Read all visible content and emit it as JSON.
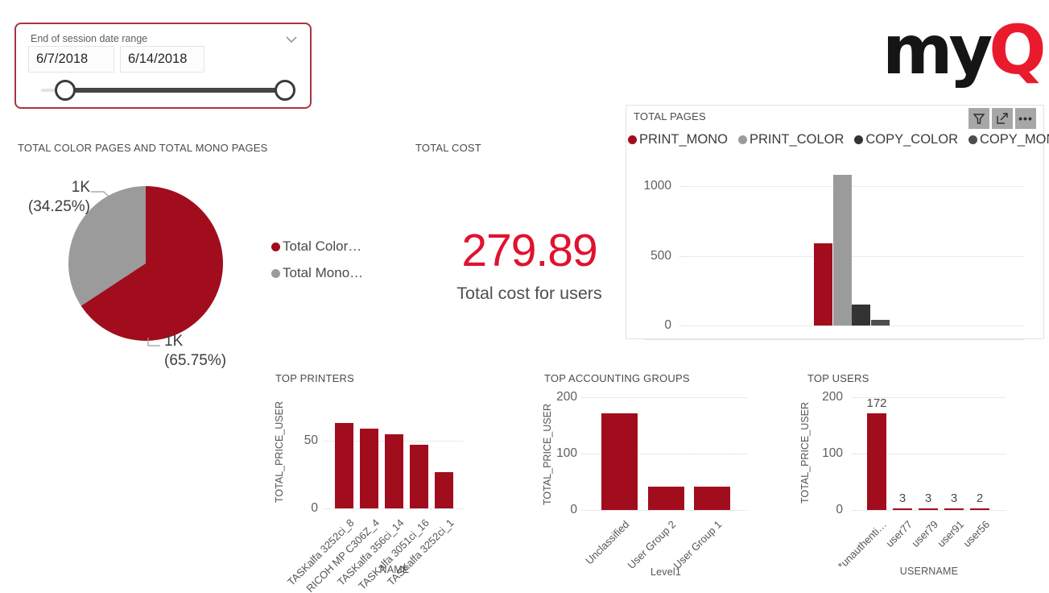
{
  "colors": {
    "dark_red": "#A20D1E",
    "gray": "#9B9B9B",
    "copy_color_dark": "#333333",
    "copy_mono_dark": "#4D4D4D",
    "bright_red": "#E0122F",
    "logo_red": "#EA1A2D",
    "logo_black": "#151515",
    "slicer_border": "#A8353F"
  },
  "slicer": {
    "label": "End of session date range",
    "start_date": "6/7/2018",
    "end_date": "6/14/2018"
  },
  "logo": {
    "black": "my",
    "red": "Q"
  },
  "cost_card": {
    "title": "TOTAL COST",
    "value": "279.89",
    "subtitle": "Total cost for users"
  },
  "pages_panel_buttons": {
    "filter": "filter",
    "focus_mode": "focus mode",
    "more_options": "more options"
  },
  "chart_data": [
    {
      "type": "pie",
      "title": "TOTAL COLOR PAGES AND TOTAL MONO PAGES",
      "slices": [
        {
          "name": "Total Color…",
          "value_label": "1K",
          "percent": 65.75,
          "percent_label": "(65.75%)",
          "color": "#A20D1E"
        },
        {
          "name": "Total Mono…",
          "value_label": "1K",
          "percent": 34.25,
          "percent_label": "(34.25%)",
          "color": "#9B9B9B"
        }
      ],
      "legend_position": "right"
    },
    {
      "type": "bar",
      "title": "TOTAL PAGES",
      "categories": [
        "PRINT_MONO",
        "PRINT_COLOR",
        "COPY_COLOR",
        "COPY_MONO"
      ],
      "values": [
        590,
        1080,
        150,
        40
      ],
      "colors": [
        "#A20D1E",
        "#9B9B9B",
        "#333333",
        "#4D4D4D"
      ],
      "yticks": [
        0,
        500,
        1000
      ],
      "ylim": [
        0,
        1150
      ],
      "legend_position": "top",
      "grid": "dotted"
    },
    {
      "type": "bar",
      "title": "TOP PRINTERS",
      "ylabel": "TOTAL_PRICE_USER",
      "xlabel": "NAME",
      "categories": [
        "TASKalfa 3252ci_8",
        "RICOH MP C306Z_4",
        "TASKalfa 356ci_14",
        "TASKalfa 3051ci_16",
        "TASKalfa 3252ci_1"
      ],
      "values": [
        63,
        59,
        55,
        47,
        27
      ],
      "bar_color": "#A20D1E",
      "yticks": [
        0,
        50
      ],
      "ylim": [
        0,
        70
      ],
      "grid": "dotted"
    },
    {
      "type": "bar",
      "title": "TOP ACCOUNTING GROUPS",
      "ylabel": "TOTAL_PRICE_USER",
      "xlabel": "Level1",
      "categories": [
        "Unclassified",
        "User Group 2",
        "User Group 1"
      ],
      "values": [
        172,
        42,
        41
      ],
      "bar_color": "#A20D1E",
      "yticks": [
        0,
        100,
        200
      ],
      "ylim": [
        0,
        200
      ],
      "grid": "dotted"
    },
    {
      "type": "bar",
      "title": "TOP USERS",
      "ylabel": "TOTAL_PRICE_USER",
      "xlabel": "USERNAME",
      "categories": [
        "*unauthenti…",
        "user77",
        "user79",
        "user91",
        "user56"
      ],
      "values": [
        172,
        3,
        3,
        3,
        2
      ],
      "data_labels": [
        "172",
        "3",
        "3",
        "3",
        "2"
      ],
      "bar_color": "#A20D1E",
      "yticks": [
        0,
        100,
        200
      ],
      "ylim": [
        0,
        200
      ],
      "grid": "dotted"
    }
  ]
}
